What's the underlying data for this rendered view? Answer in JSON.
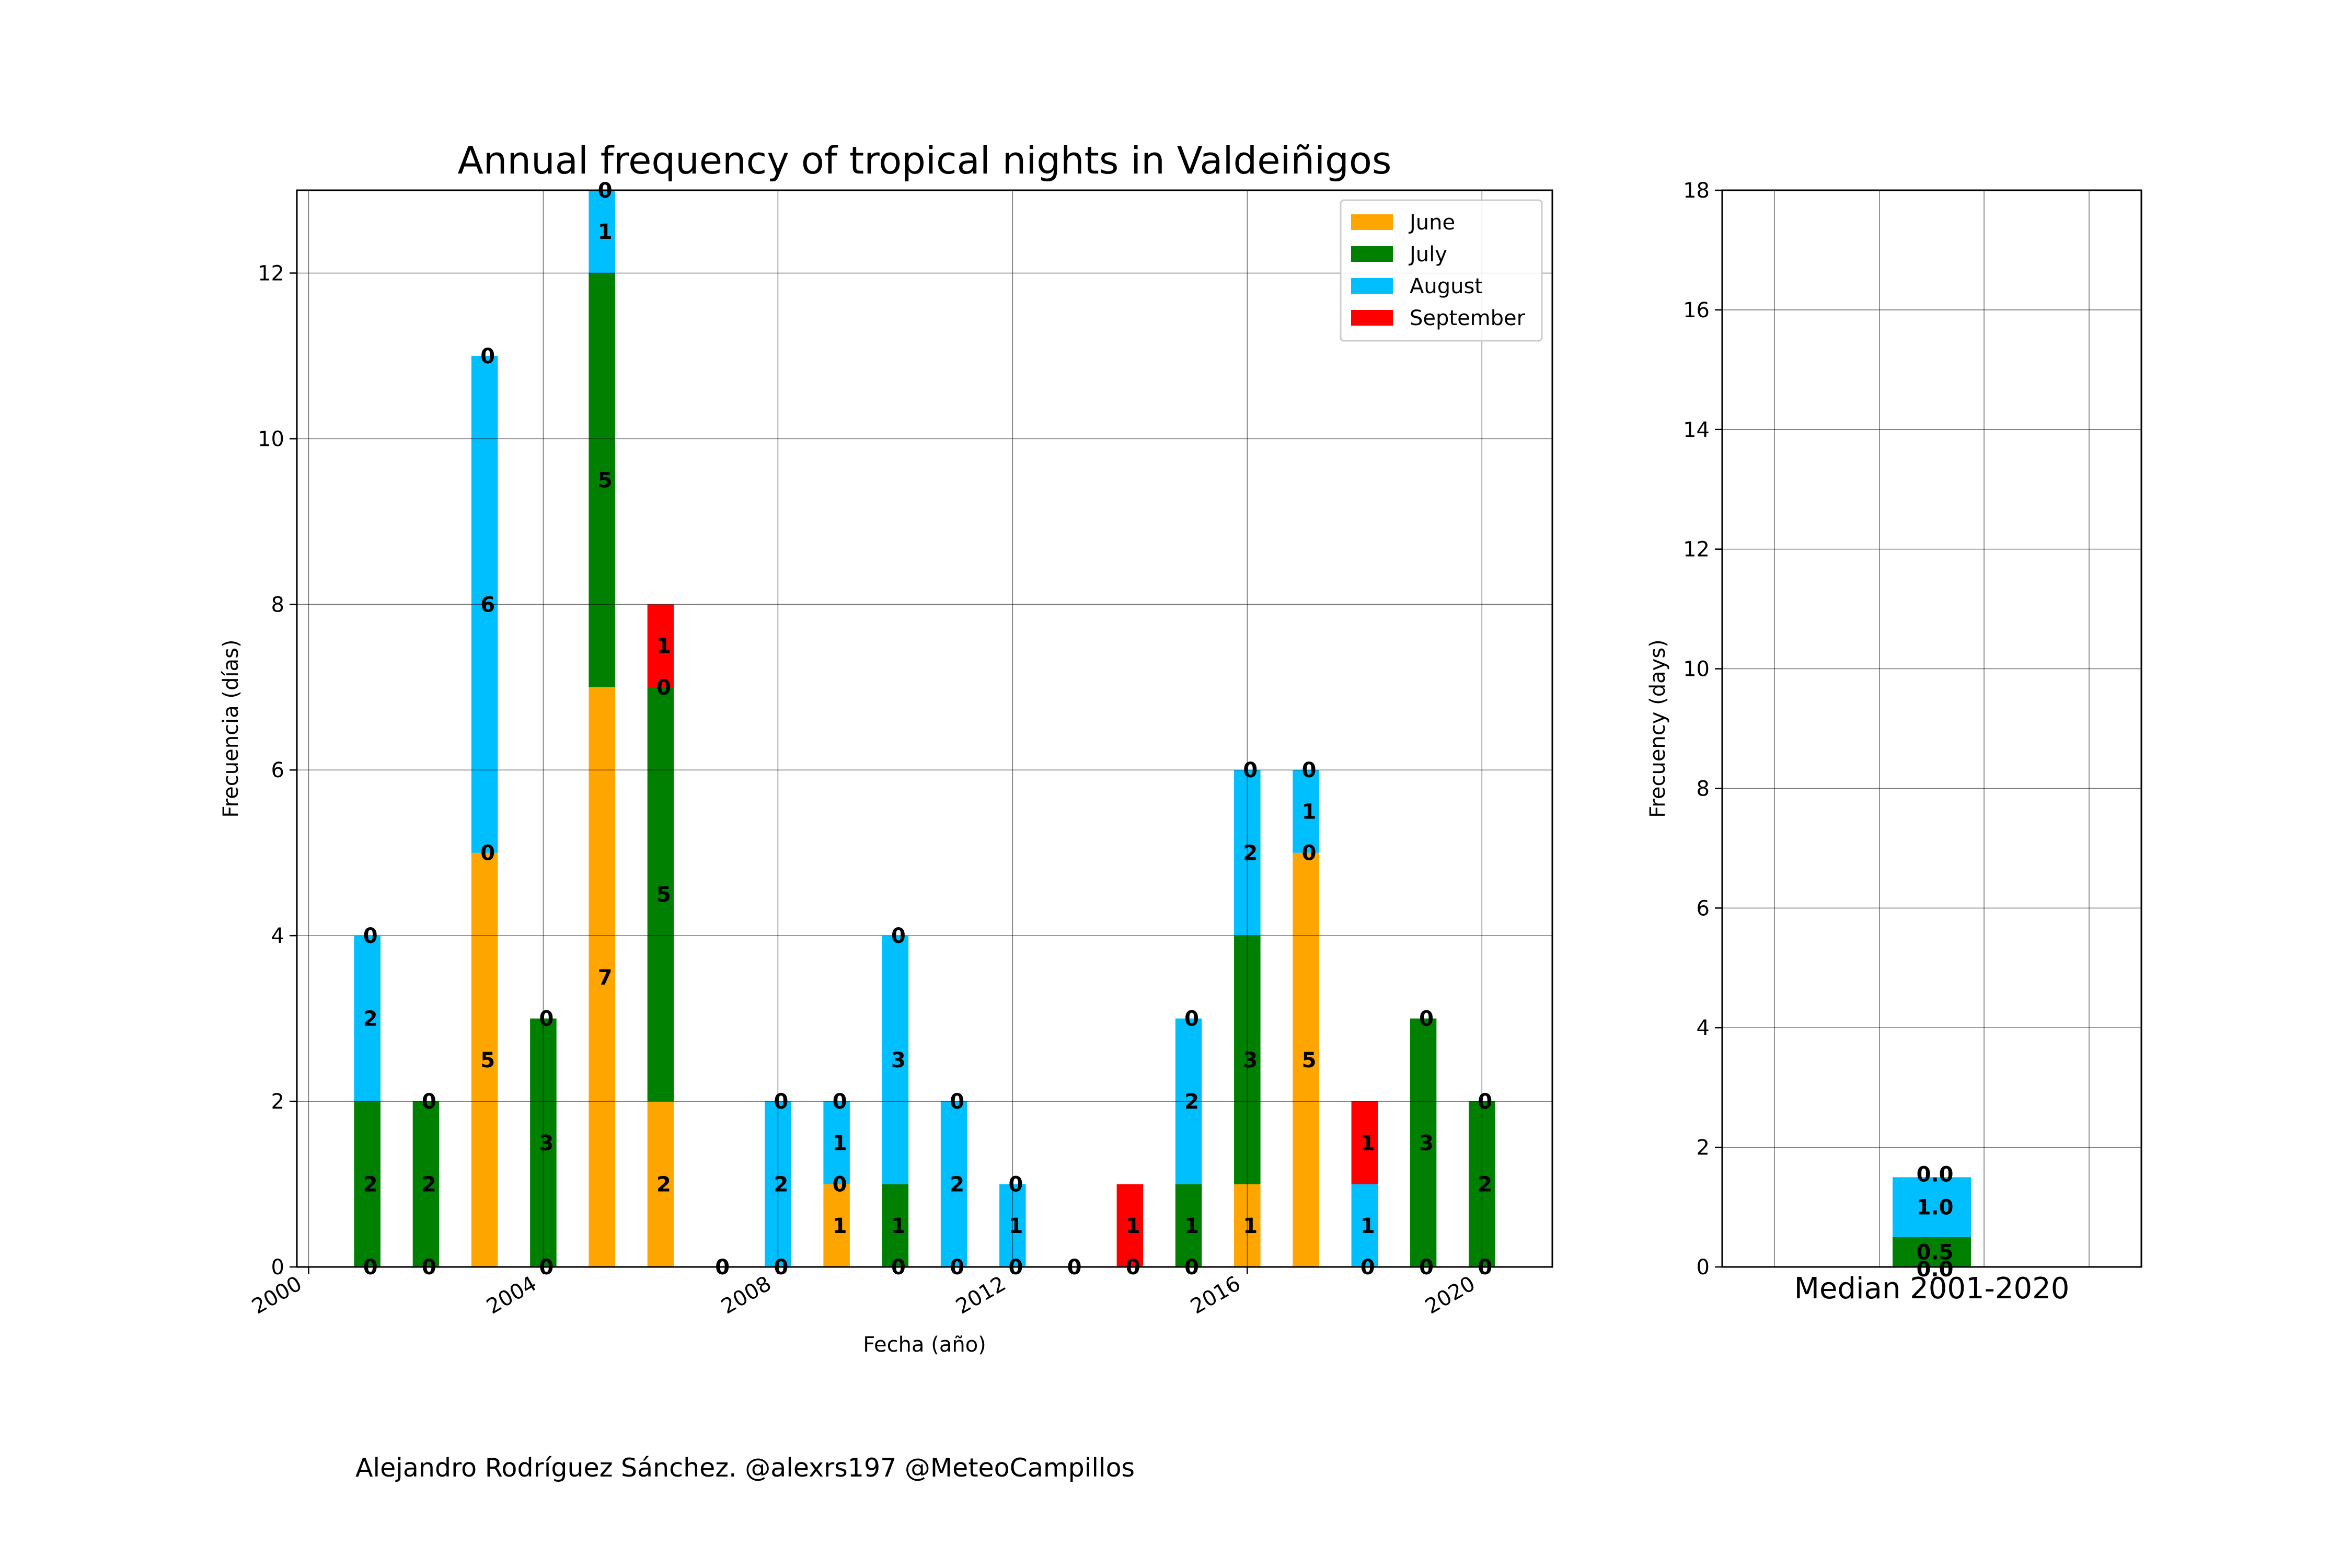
{
  "credit": "Alejandro Rodríguez Sánchez. @alexrs197 @MeteoCampillos",
  "chart_data": [
    {
      "type": "bar",
      "stacked": true,
      "title": "Annual frequency of tropical nights in Valdeiñigos",
      "xlabel": "Fecha (año)",
      "ylabel": "Frecuencia (días)",
      "xlim": [
        1999.8,
        2021.2
      ],
      "ylim": [
        0,
        13
      ],
      "xticks": [
        2000,
        2004,
        2008,
        2012,
        2016,
        2020
      ],
      "yticks": [
        0,
        2,
        4,
        6,
        8,
        10,
        12
      ],
      "grid": true,
      "legend_position": "top-right",
      "x": [
        2001,
        2002,
        2003,
        2004,
        2005,
        2006,
        2007,
        2008,
        2009,
        2010,
        2011,
        2012,
        2013,
        2014,
        2015,
        2016,
        2017,
        2018,
        2019,
        2020
      ],
      "series": [
        {
          "name": "June",
          "color": "#ffa500",
          "values": [
            0,
            0,
            5,
            0,
            7,
            2,
            0,
            0,
            1,
            0,
            0,
            0,
            0,
            0,
            0,
            1,
            5,
            0,
            0,
            0
          ]
        },
        {
          "name": "July",
          "color": "#008000",
          "values": [
            2,
            2,
            0,
            3,
            5,
            5,
            0,
            0,
            0,
            1,
            0,
            0,
            0,
            0,
            1,
            3,
            0,
            0,
            3,
            2
          ]
        },
        {
          "name": "August",
          "color": "#00bfff",
          "values": [
            2,
            0,
            6,
            0,
            1,
            0,
            0,
            2,
            1,
            3,
            2,
            1,
            0,
            0,
            2,
            2,
            1,
            1,
            0,
            0
          ]
        },
        {
          "name": "September",
          "color": "#ff0000",
          "values": [
            0,
            0,
            0,
            0,
            0,
            1,
            0,
            0,
            0,
            0,
            0,
            0,
            0,
            1,
            0,
            0,
            0,
            1,
            0,
            0
          ]
        }
      ],
      "data_labels": [
        {
          "x": 2001,
          "labels": [
            "0",
            "2",
            "2",
            "0"
          ]
        },
        {
          "x": 2002,
          "labels": [
            "0",
            "2",
            "0"
          ]
        },
        {
          "x": 2003,
          "labels": [
            "5",
            "0",
            "6",
            "0"
          ]
        },
        {
          "x": 2004,
          "labels": [
            "0",
            "3",
            "0"
          ]
        },
        {
          "x": 2005,
          "labels": [
            "7",
            "5",
            "1",
            "0"
          ]
        },
        {
          "x": 2006,
          "labels": [
            "2",
            "5",
            "0",
            "1"
          ]
        },
        {
          "x": 2007,
          "labels": [
            "0"
          ]
        },
        {
          "x": 2008,
          "labels": [
            "0",
            "2",
            "0"
          ]
        },
        {
          "x": 2009,
          "labels": [
            "1",
            "0",
            "1",
            "0"
          ]
        },
        {
          "x": 2010,
          "labels": [
            "0",
            "1",
            "3",
            "0"
          ]
        },
        {
          "x": 2011,
          "labels": [
            "0",
            "2",
            "0"
          ]
        },
        {
          "x": 2012,
          "labels": [
            "0",
            "1",
            "0"
          ]
        },
        {
          "x": 2013,
          "labels": [
            "0"
          ]
        },
        {
          "x": 2014,
          "labels": [
            "0",
            "1"
          ]
        },
        {
          "x": 2015,
          "labels": [
            "0",
            "1",
            "2",
            "0"
          ]
        },
        {
          "x": 2016,
          "labels": [
            "1",
            "3",
            "2",
            "0"
          ]
        },
        {
          "x": 2017,
          "labels": [
            "5",
            "0",
            "1",
            "0"
          ]
        },
        {
          "x": 2018,
          "labels": [
            "0",
            "1",
            "1"
          ]
        },
        {
          "x": 2019,
          "labels": [
            "0",
            "3",
            "0"
          ]
        },
        {
          "x": 2020,
          "labels": [
            "0",
            "2",
            "0"
          ]
        }
      ]
    },
    {
      "type": "bar",
      "stacked": true,
      "title": "",
      "xlabel": "Median 2001-2020",
      "ylabel": "Frecuency (days)",
      "ylim": [
        0,
        18
      ],
      "yticks": [
        0,
        2,
        4,
        6,
        8,
        10,
        12,
        14,
        16,
        18
      ],
      "grid": true,
      "categories": [
        "Median 2001-2020"
      ],
      "series": [
        {
          "name": "June",
          "color": "#ffa500",
          "values": [
            0.0
          ]
        },
        {
          "name": "July",
          "color": "#008000",
          "values": [
            0.5
          ]
        },
        {
          "name": "August",
          "color": "#00bfff",
          "values": [
            1.0
          ]
        },
        {
          "name": "September",
          "color": "#ff0000",
          "values": [
            0.0
          ]
        }
      ],
      "data_labels": [
        "0.0",
        "0.5",
        "1.0",
        "0.0"
      ]
    }
  ]
}
